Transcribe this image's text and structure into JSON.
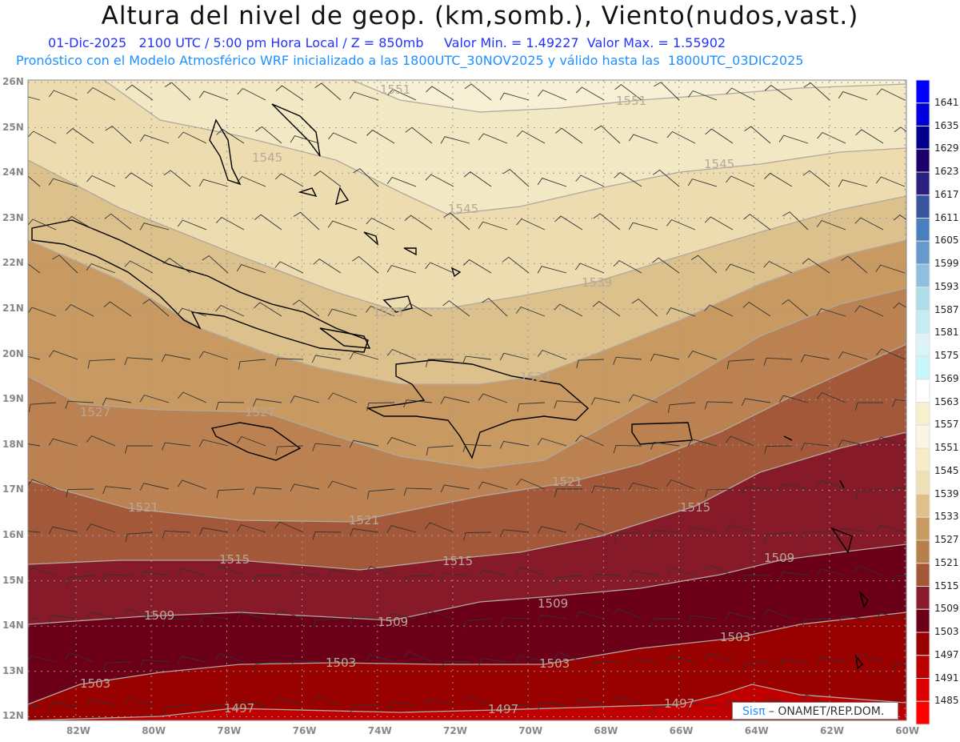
{
  "header": {
    "title": "Altura del nivel de geop. (km,somb.), Viento(nudos,vast.)",
    "subtitle": "01-Dic-2025   2100 UTC / 5:00 pm Hora Local / Z = 850mb     Valor Min. = 1.49227  Valor Max. = 1.55902",
    "model_info": "Pronóstico con el Modelo Atmosférico WRF inicializado a las 1800UTC_30NOV2025 y válido hasta las  1800UTC_03DIC2025"
  },
  "lat_labels": [
    "26N",
    "25N",
    "24N",
    "23N",
    "22N",
    "21N",
    "20N",
    "19N",
    "18N",
    "17N",
    "16N",
    "15N",
    "14N",
    "13N",
    "12N"
  ],
  "lon_labels": [
    "82W",
    "80W",
    "78W",
    "76W",
    "74W",
    "72W",
    "70W",
    "68W",
    "66W",
    "64W",
    "62W",
    "60W"
  ],
  "contour_labels": [
    "1551",
    "1551",
    "1545",
    "1545",
    "1545",
    "1539",
    "1533",
    "1533",
    "1527",
    "1527",
    "1521",
    "1521",
    "1521",
    "1515",
    "1515",
    "1515",
    "1509",
    "1509",
    "1509",
    "1509",
    "1503",
    "1503",
    "1503",
    "1503",
    "1497",
    "1497",
    "1497"
  ],
  "colorbar": {
    "labels": [
      "1641",
      "1635",
      "1629",
      "1623",
      "1617",
      "1611",
      "1605",
      "1599",
      "1593",
      "1587",
      "1581",
      "1575",
      "1569",
      "1563",
      "1557",
      "1551",
      "1545",
      "1539",
      "1533",
      "1527",
      "1521",
      "1515",
      "1509",
      "1503",
      "1497",
      "1491",
      "1485"
    ],
    "colors": [
      "#0000ff",
      "#0000dd",
      "#00008c",
      "#1a0068",
      "#2b2080",
      "#3a559e",
      "#4a7fbd",
      "#6699cc",
      "#8fbfdf",
      "#b0dcea",
      "#c6ecf3",
      "#dcf4f8",
      "#c8f7f9",
      "#ffffff",
      "#f7f0cc",
      "#fbf5e2",
      "#f7ecc8",
      "#efdfb5",
      "#dfc08b",
      "#c79b62",
      "#b87e4c",
      "#a35939",
      "#8b1a2a",
      "#6c0019",
      "#990000",
      "#bb0000",
      "#dd0000",
      "#ff0000"
    ]
  },
  "band_colors": {
    "b1491": "#c00000",
    "b1497": "#990000",
    "b1503": "#6c0019",
    "b1509": "#861a28",
    "b1515": "#a35939",
    "b1521": "#bb8150",
    "b1527": "#c89a62",
    "b1533": "#dcc18d",
    "b1539": "#ecdcb0",
    "b1545": "#f3e8c4",
    "b1551": "#f8f0d4"
  },
  "credit": {
    "logo": "Sisπ",
    "text": "– ONAMET/REP.DOM."
  }
}
